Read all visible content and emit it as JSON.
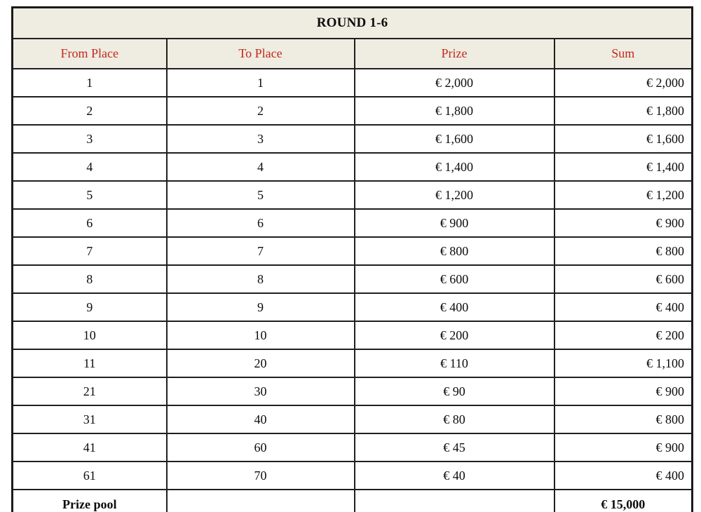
{
  "table": {
    "title": "ROUND 1-6",
    "columns": [
      "From Place",
      "To Place",
      "Prize",
      "Sum"
    ],
    "rows": [
      [
        "1",
        "1",
        "€ 2,000",
        "€ 2,000"
      ],
      [
        "2",
        "2",
        "€ 1,800",
        "€ 1,800"
      ],
      [
        "3",
        "3",
        "€ 1,600",
        "€ 1,600"
      ],
      [
        "4",
        "4",
        "€ 1,400",
        "€ 1,400"
      ],
      [
        "5",
        "5",
        "€ 1,200",
        "€ 1,200"
      ],
      [
        "6",
        "6",
        "€ 900",
        "€ 900"
      ],
      [
        "7",
        "7",
        "€ 800",
        "€ 800"
      ],
      [
        "8",
        "8",
        "€ 600",
        "€ 600"
      ],
      [
        "9",
        "9",
        "€ 400",
        "€ 400"
      ],
      [
        "10",
        "10",
        "€ 200",
        "€ 200"
      ],
      [
        "11",
        "20",
        "€ 110",
        "€ 1,100"
      ],
      [
        "21",
        "30",
        "€ 90",
        "€ 900"
      ],
      [
        "31",
        "40",
        "€ 80",
        "€ 800"
      ],
      [
        "41",
        "60",
        "€ 45",
        "€ 900"
      ],
      [
        "61",
        "70",
        "€ 40",
        "€ 400"
      ]
    ],
    "footer": {
      "label": "Prize pool",
      "total": "€ 15,000"
    },
    "colors": {
      "header_bg": "#efece1",
      "header_text": "#c2281e",
      "border": "#1a1a1a",
      "currency": "EUR"
    }
  }
}
